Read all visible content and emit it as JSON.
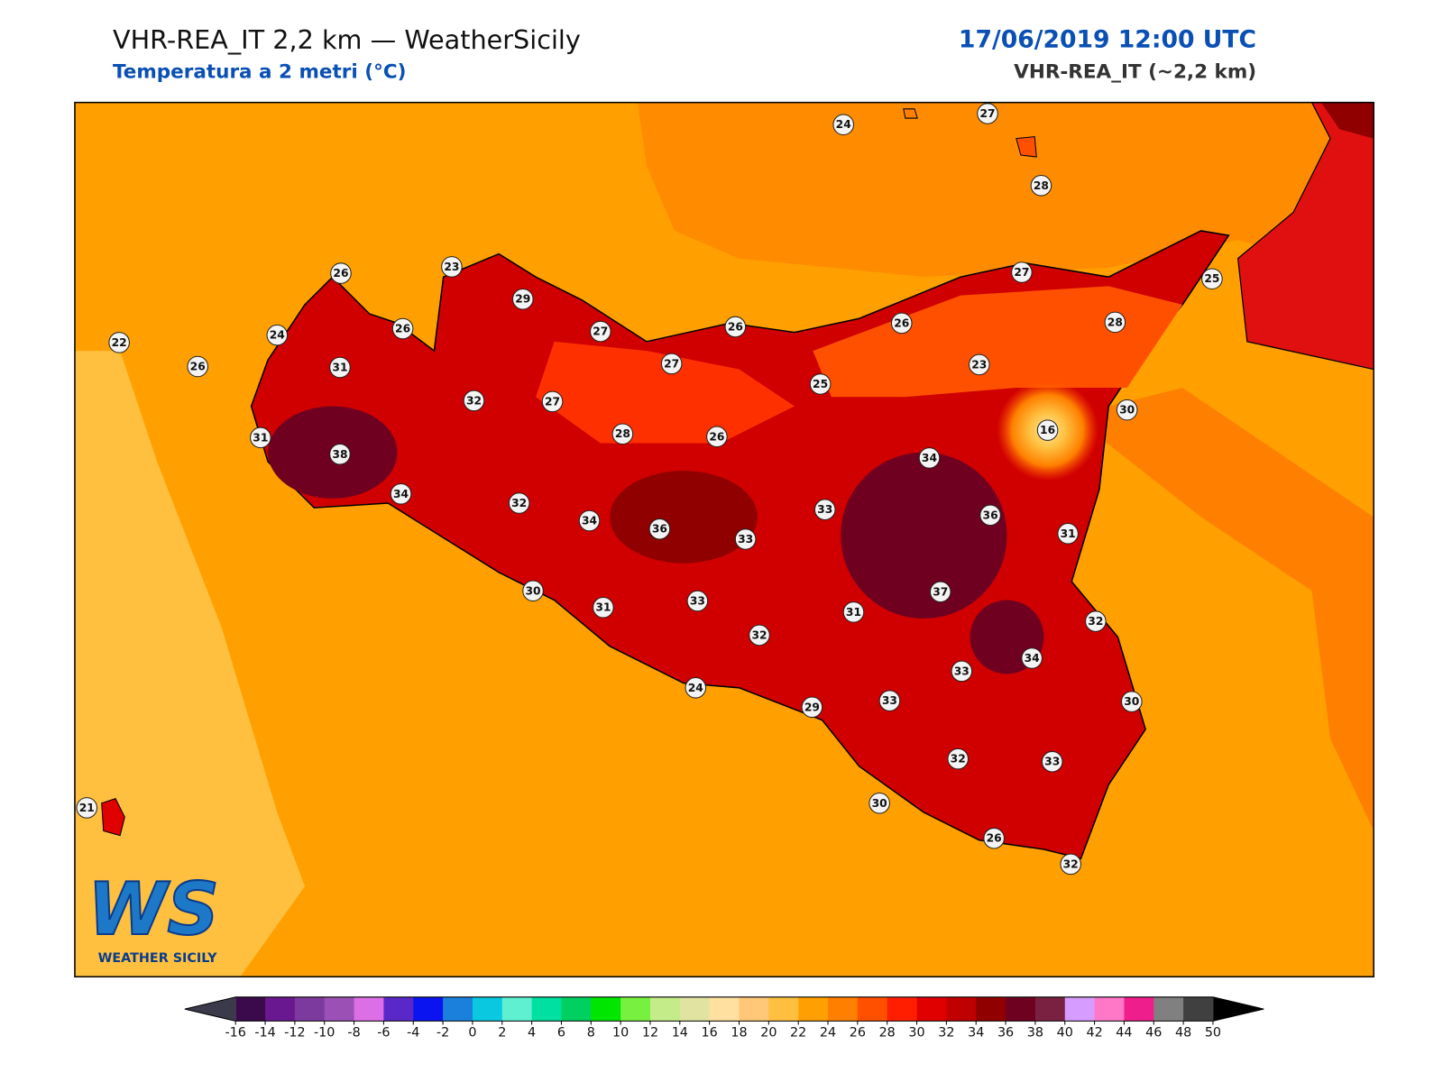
{
  "header": {
    "title": "VHR-REA_IT 2,2 km — WeatherSicily",
    "subtitle": "Temperatura a 2 metri (°C)",
    "datetime": "17/06/2019 12:00 UTC",
    "model": "VHR-REA_IT (~2,2 km)"
  },
  "stations": [
    24,
    27,
    28,
    26,
    23,
    29,
    22,
    24,
    26,
    26,
    31,
    27,
    26,
    27,
    25,
    28,
    26,
    27,
    25,
    23,
    32,
    27,
    30,
    16,
    31,
    38,
    28,
    26,
    34,
    34,
    32,
    33,
    36,
    34,
    36,
    33,
    31,
    30,
    37,
    31,
    33,
    31,
    32,
    32,
    34,
    33,
    24,
    29,
    33,
    30,
    32,
    33,
    30,
    21,
    26,
    32
  ],
  "colorbar": {
    "ticks": [
      -16,
      -14,
      -12,
      -10,
      -8,
      -6,
      -4,
      -2,
      0,
      2,
      4,
      6,
      8,
      10,
      12,
      14,
      16,
      18,
      20,
      22,
      24,
      26,
      28,
      30,
      32,
      34,
      36,
      38,
      40,
      42,
      44,
      46,
      48,
      50
    ],
    "colors": [
      "#3b0a4a",
      "#6a1890",
      "#7d3a9e",
      "#9b50b5",
      "#dc6fe6",
      "#5a28c8",
      "#0a14f0",
      "#1a80dc",
      "#0ac8e0",
      "#5ef0d0",
      "#00e0a0",
      "#00d060",
      "#00e600",
      "#78f040",
      "#c4ec88",
      "#e0e4a0",
      "#ffe0a0",
      "#ffc878",
      "#ffc040",
      "#ffa000",
      "#ff8000",
      "#ff5000",
      "#ff1e00",
      "#e00000",
      "#c00000",
      "#900000",
      "#6e0020",
      "#7a2040",
      "#d79cff",
      "#ff78c8",
      "#f01e8c",
      "#808080",
      "#404040"
    ],
    "under": "#3a3a4a",
    "over": "#000000"
  },
  "logo": {
    "initials": "WS",
    "name": "WEATHER SICILY"
  }
}
